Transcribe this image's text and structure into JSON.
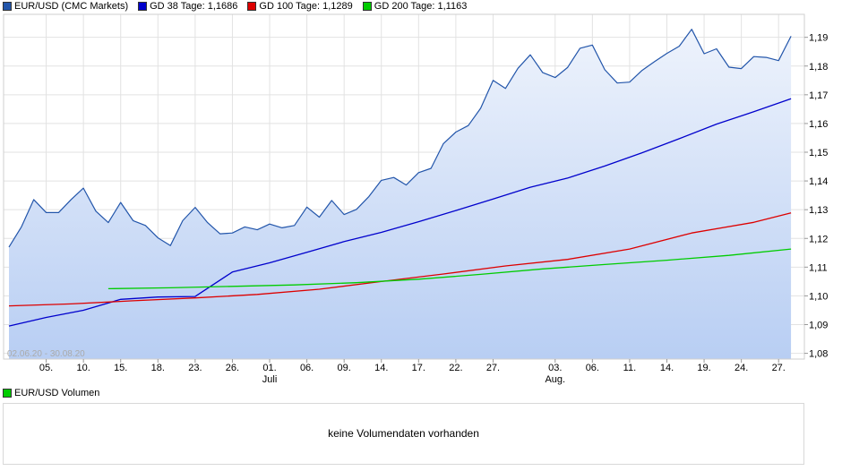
{
  "legend": [
    {
      "label": "EUR/USD (CMC Markets)",
      "color": "#2255aa"
    },
    {
      "label": "GD 38 Tage: 1,1686",
      "color": "#0000cc"
    },
    {
      "label": "GD 100 Tage: 1,1289",
      "color": "#dd0000"
    },
    {
      "label": "GD 200 Tage: 1,1163",
      "color": "#00cc00"
    }
  ],
  "date_range": "02.06.20 - 30.08.20",
  "volume": {
    "legend_label": "EUR/USD Volumen",
    "legend_color": "#00cc00",
    "message": "keine Volumendaten vorhanden"
  },
  "chart_data": {
    "type": "line",
    "ylim": [
      1.078,
      1.198
    ],
    "yticks": [
      "1,19",
      "1,18",
      "1,17",
      "1,16",
      "1,15",
      "1,14",
      "1,13",
      "1,12",
      "1,11",
      "1,10",
      "1,09",
      "1,08"
    ],
    "ytick_values": [
      1.19,
      1.18,
      1.17,
      1.16,
      1.15,
      1.14,
      1.13,
      1.12,
      1.11,
      1.1,
      1.09,
      1.08
    ],
    "x_day_range": [
      0,
      63.5
    ],
    "xticks": [
      {
        "label": "05.",
        "day": 3
      },
      {
        "label": "10.",
        "day": 6
      },
      {
        "label": "15.",
        "day": 9
      },
      {
        "label": "18.",
        "day": 12
      },
      {
        "label": "23.",
        "day": 15
      },
      {
        "label": "26.",
        "day": 18
      },
      {
        "label": "01.",
        "day": 21,
        "month": "Juli"
      },
      {
        "label": "06.",
        "day": 24
      },
      {
        "label": "09.",
        "day": 27
      },
      {
        "label": "14.",
        "day": 30
      },
      {
        "label": "17.",
        "day": 33
      },
      {
        "label": "22.",
        "day": 36
      },
      {
        "label": "27.",
        "day": 39
      },
      {
        "label": "03.",
        "day": 44,
        "month": "Aug."
      },
      {
        "label": "06.",
        "day": 47
      },
      {
        "label": "11.",
        "day": 50
      },
      {
        "label": "14.",
        "day": 53
      },
      {
        "label": "19.",
        "day": 56
      },
      {
        "label": "24.",
        "day": 59
      },
      {
        "label": "27.",
        "day": 62
      }
    ],
    "series": [
      {
        "name": "EUR/USD (CMC Markets)",
        "color": "#2255aa",
        "fill": true,
        "days": [
          0,
          1,
          2,
          3,
          4,
          5,
          6,
          7,
          8,
          9,
          10,
          11,
          12,
          13,
          14,
          15,
          16,
          17,
          18,
          19,
          20,
          21,
          22,
          23,
          24,
          25,
          26,
          27,
          28,
          29,
          30,
          31,
          32,
          33,
          34,
          35,
          36,
          37,
          38,
          39,
          40,
          41,
          42,
          43,
          44,
          45,
          46,
          47,
          48,
          49,
          50,
          51,
          52,
          53,
          54,
          55,
          56,
          57,
          58,
          59,
          60,
          61,
          62,
          63
        ],
        "values": [
          1.117,
          1.124,
          1.1335,
          1.129,
          1.129,
          1.1335,
          1.1375,
          1.1295,
          1.1255,
          1.1325,
          1.1262,
          1.1245,
          1.1202,
          1.1175,
          1.1262,
          1.1308,
          1.1255,
          1.1216,
          1.1219,
          1.124,
          1.123,
          1.125,
          1.1237,
          1.1245,
          1.1309,
          1.1274,
          1.1332,
          1.1283,
          1.1301,
          1.1346,
          1.1402,
          1.1412,
          1.1386,
          1.1429,
          1.1444,
          1.153,
          1.157,
          1.1593,
          1.1653,
          1.175,
          1.1722,
          1.1792,
          1.1839,
          1.1777,
          1.176,
          1.1795,
          1.1862,
          1.1873,
          1.1787,
          1.1741,
          1.1744,
          1.1785,
          1.1815,
          1.1844,
          1.1869,
          1.1928,
          1.1843,
          1.186,
          1.1796,
          1.1791,
          1.1833,
          1.183,
          1.1819,
          1.1904
        ]
      },
      {
        "name": "GD 38 Tage",
        "color": "#0000cc",
        "days": [
          0,
          3,
          6,
          9,
          12,
          15,
          18,
          21,
          24,
          27,
          30,
          33,
          36,
          39,
          42,
          45,
          48,
          51,
          54,
          57,
          60,
          63
        ],
        "values": [
          1.0895,
          1.0925,
          1.095,
          1.0988,
          1.0996,
          1.0998,
          1.1083,
          1.1115,
          1.1152,
          1.1189,
          1.1221,
          1.1258,
          1.1297,
          1.1337,
          1.1378,
          1.141,
          1.1452,
          1.1498,
          1.1547,
          1.1598,
          1.1641,
          1.1686
        ]
      },
      {
        "name": "GD 100 Tage",
        "color": "#dd0000",
        "days": [
          0,
          5,
          10,
          15,
          20,
          25,
          30,
          35,
          40,
          45,
          50,
          55,
          60,
          63
        ],
        "values": [
          1.0965,
          1.0972,
          1.0983,
          1.0993,
          1.1005,
          1.1023,
          1.105,
          1.1076,
          1.1104,
          1.1127,
          1.1163,
          1.1219,
          1.1256,
          1.1289
        ]
      },
      {
        "name": "GD 200 Tage",
        "color": "#00cc00",
        "days": [
          8,
          13,
          18,
          23,
          28,
          33,
          38,
          43,
          48,
          53,
          58,
          63
        ],
        "values": [
          1.1025,
          1.1028,
          1.1033,
          1.1038,
          1.1046,
          1.1058,
          1.1075,
          1.1094,
          1.1109,
          1.1124,
          1.1141,
          1.1163
        ]
      }
    ]
  }
}
